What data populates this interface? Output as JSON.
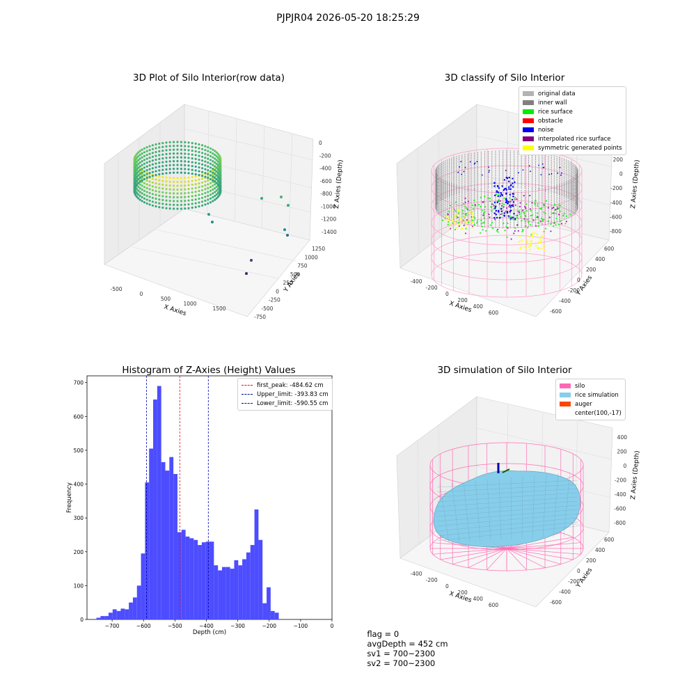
{
  "suptitle": "PJPJR04 2026-05-20 18:25:29",
  "footer": {
    "flag": "flag = 0",
    "avgdepth": "avgDepth = 452 cm",
    "sv1": "sv1 = 700~2300",
    "sv2": "sv2 = 700~2300"
  },
  "chart_data": [
    {
      "type": "scatter",
      "title": "3D Plot of Silo Interior(row data)",
      "xlabel": "X Axies",
      "ylabel": "Y Axies",
      "zlabel": "Z Axies (Depth)",
      "x_ticks": [
        "-500",
        "0",
        "500",
        "1000",
        "1500"
      ],
      "y_ticks": [
        "-750",
        "-500",
        "-250",
        "0",
        "250",
        "500",
        "750",
        "1000",
        "1250"
      ],
      "z_ticks": [
        "0",
        "-200",
        "-400",
        "-600",
        "-800",
        "-1000",
        "-1200",
        "-1400"
      ],
      "colormap": "viridis"
    },
    {
      "type": "scatter",
      "title": "3D classify of Silo Interior",
      "xlabel": "X Axies",
      "ylabel": "Y Axies",
      "zlabel": "Z Axies (Depth)",
      "x_ticks": [
        "-400",
        "-200",
        "0",
        "200",
        "400",
        "600"
      ],
      "y_ticks": [
        "-600",
        "-400",
        "-200",
        "0",
        "200",
        "400",
        "600"
      ],
      "z_ticks": [
        "200",
        "0",
        "-200",
        "-400",
        "-600",
        "-800"
      ],
      "legend_position": "top-right",
      "legend": [
        {
          "label": "original data",
          "color": "#b3b3b3"
        },
        {
          "label": "inner wall",
          "color": "#808080"
        },
        {
          "label": "rice surface",
          "color": "#00ee00"
        },
        {
          "label": "obstacle",
          "color": "#ff0000"
        },
        {
          "label": "noise",
          "color": "#0000ee"
        },
        {
          "label": "interpolated rice surface",
          "color": "#800080"
        },
        {
          "label": "symmetric generated points",
          "color": "#ffff00"
        }
      ]
    },
    {
      "type": "bar",
      "title": "Histogram of Z-Axies (Height) Values",
      "xlabel": "Depth (cm)",
      "ylabel": "Frequency",
      "xlim": [
        -780,
        0
      ],
      "ylim": [
        0,
        720
      ],
      "x_ticks": [
        -700,
        -600,
        -500,
        -400,
        -300,
        -200,
        -100,
        0
      ],
      "y_ticks": [
        0,
        100,
        200,
        300,
        400,
        500,
        600,
        700
      ],
      "bin_width": 12.9,
      "bin_start": -750,
      "bar_color": "#4d4dff",
      "values": [
        5,
        10,
        10,
        20,
        30,
        25,
        32,
        30,
        50,
        65,
        100,
        195,
        405,
        505,
        650,
        690,
        465,
        440,
        480,
        430,
        258,
        265,
        245,
        240,
        235,
        220,
        228,
        230,
        230,
        160,
        145,
        155,
        155,
        150,
        175,
        160,
        178,
        198,
        220,
        325,
        235,
        48,
        95,
        25,
        20
      ],
      "vlines": [
        {
          "label": "first_peak: -484.62 cm",
          "x": -484.62,
          "color": "#ff0000"
        },
        {
          "label": "Upper_limit: -393.83 cm",
          "x": -393.83,
          "color": "#0000aa"
        },
        {
          "label": "Lower_limit: -590.55 cm",
          "x": -590.55,
          "color": "#0000aa"
        }
      ],
      "legend_position": "top-right"
    },
    {
      "type": "scatter",
      "title": "3D simulation of Silo Interior",
      "xlabel": "X Axies",
      "ylabel": "Y Axies",
      "zlabel": "Z Axies (Depth)",
      "x_ticks": [
        "-400",
        "-200",
        "0",
        "200",
        "400",
        "600"
      ],
      "y_ticks": [
        "-600",
        "-400",
        "-200",
        "0",
        "200",
        "400",
        "600"
      ],
      "z_ticks": [
        "400",
        "200",
        "0",
        "-200",
        "-400",
        "-600",
        "-800"
      ],
      "legend_position": "top-right",
      "legend": [
        {
          "label": "silo",
          "color": "#ff69b4"
        },
        {
          "label": "rice simulation",
          "color": "#87ceeb"
        },
        {
          "label": "auger",
          "color": "#ff4500"
        },
        {
          "label": "center(100,-17)",
          "color": ""
        }
      ]
    }
  ]
}
